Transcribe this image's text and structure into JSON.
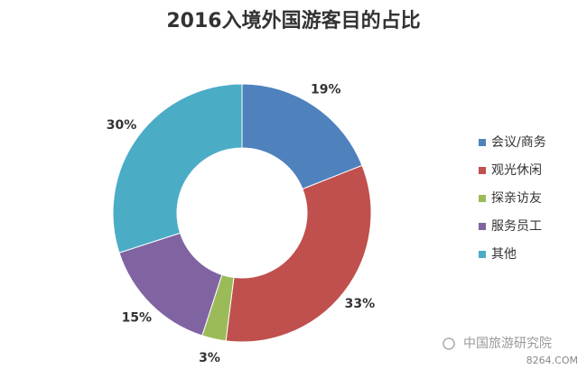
{
  "chart_data": {
    "type": "donut",
    "title": "2016入境外国游客目的占比",
    "categories": [
      "会议/商务",
      "观光休闲",
      "探亲访友",
      "服务员工",
      "其他"
    ],
    "values": [
      19,
      33,
      3,
      15,
      30
    ],
    "value_labels": [
      "19%",
      "33%",
      "3%",
      "15%",
      "30%"
    ],
    "colors": [
      "#4f81bd",
      "#c0504d",
      "#9bbb59",
      "#8064a2",
      "#4bacc6"
    ],
    "legend": "right"
  },
  "watermark": {
    "text": "中国旅游研究院",
    "site": "8264.COM"
  }
}
